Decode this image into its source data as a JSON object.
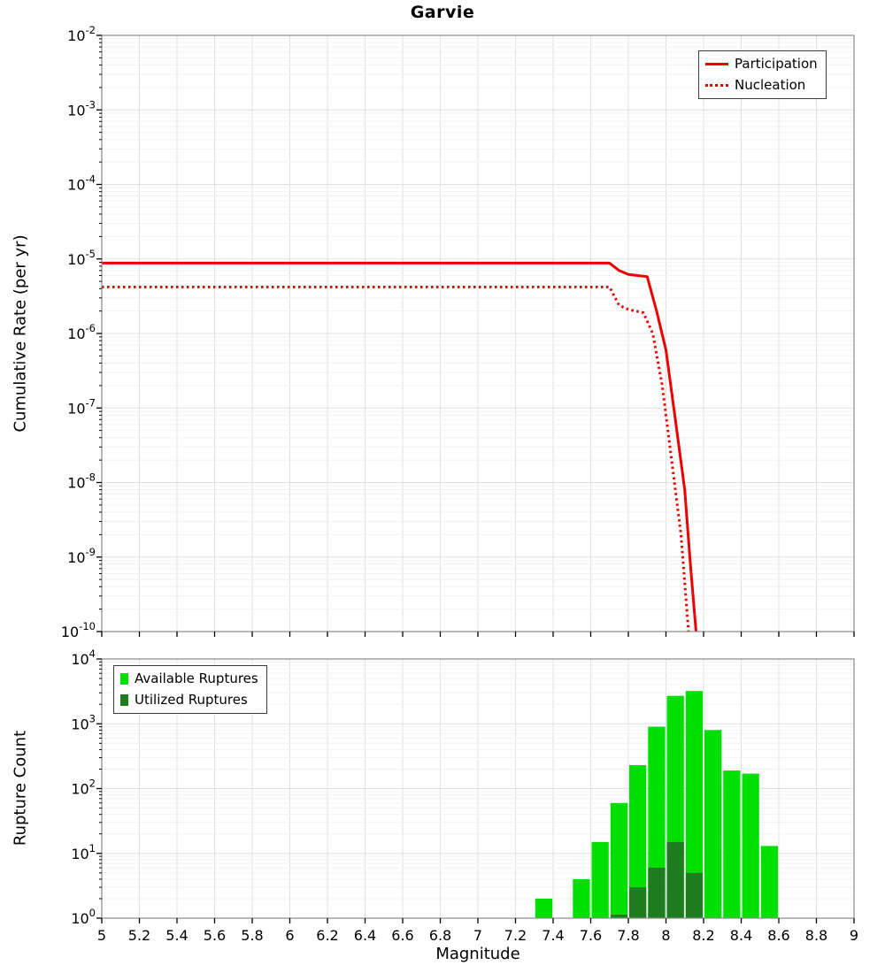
{
  "title": "Garvie",
  "axes": {
    "top_ylabel": "Cumulative Rate (per yr)",
    "bottom_ylabel": "Rupture Count",
    "xlabel": "Magnitude"
  },
  "legend_top": {
    "items": [
      {
        "label": "Participation",
        "style": "solid"
      },
      {
        "label": "Nucleation",
        "style": "dotted"
      }
    ]
  },
  "legend_bottom": {
    "items": [
      {
        "label": "Available Ruptures",
        "color": "#00e000"
      },
      {
        "label": "Utilized Ruptures",
        "color": "#1e7d1e"
      }
    ]
  },
  "colors": {
    "line": "#ee0000",
    "available": "#00e000",
    "utilized": "#1e7d1e",
    "grid": "#e0e0e0",
    "grid_minor": "#f2f2f2",
    "frame": "#8a8a8a"
  },
  "chart_data": [
    {
      "type": "line",
      "title": "Garvie",
      "xlabel": "Magnitude",
      "ylabel": "Cumulative Rate (per yr)",
      "xlim": [
        5,
        9
      ],
      "x_tick_step": 0.2,
      "show_x_labels": false,
      "ylog_exponents": [
        -2,
        -10
      ],
      "legend_position": "top-right",
      "series": [
        {
          "name": "Participation",
          "style": "solid",
          "color": "#ee0000",
          "points": [
            [
              5.0,
              8.8e-06
            ],
            [
              7.7,
              8.8e-06
            ],
            [
              7.75,
              7e-06
            ],
            [
              7.8,
              6.2e-06
            ],
            [
              7.9,
              5.8e-06
            ],
            [
              7.95,
              2e-06
            ],
            [
              8.0,
              6e-07
            ],
            [
              8.05,
              7e-08
            ],
            [
              8.1,
              8e-09
            ],
            [
              8.13,
              8e-10
            ],
            [
              8.16,
              1e-10
            ]
          ]
        },
        {
          "name": "Nucleation",
          "style": "dotted",
          "color": "#ee0000",
          "points": [
            [
              5.0,
              4.2e-06
            ],
            [
              7.7,
              4.2e-06
            ],
            [
              7.75,
              2.4e-06
            ],
            [
              7.8,
              2.1e-06
            ],
            [
              7.88,
              1.9e-06
            ],
            [
              7.93,
              1e-06
            ],
            [
              7.98,
              2e-07
            ],
            [
              8.03,
              2e-08
            ],
            [
              8.08,
              2e-09
            ],
            [
              8.12,
              1e-10
            ]
          ]
        }
      ]
    },
    {
      "type": "bar",
      "title": "",
      "xlabel": "Magnitude",
      "ylabel": "Rupture Count",
      "xlim": [
        5,
        9
      ],
      "x_tick_step": 0.2,
      "show_x_labels": true,
      "ylog_exponents": [
        4,
        0
      ],
      "bar_width_mag": 0.1,
      "legend_position": "top-left",
      "series": [
        {
          "name": "Available Ruptures",
          "color": "#00e000",
          "bars": [
            [
              7.35,
              2
            ],
            [
              7.55,
              4
            ],
            [
              7.65,
              15
            ],
            [
              7.75,
              60
            ],
            [
              7.85,
              230
            ],
            [
              7.95,
              900
            ],
            [
              8.05,
              2700
            ],
            [
              8.15,
              3200
            ],
            [
              8.25,
              800
            ],
            [
              8.35,
              190
            ],
            [
              8.45,
              170
            ],
            [
              8.55,
              13
            ]
          ]
        },
        {
          "name": "Utilized Ruptures",
          "color": "#1e7d1e",
          "bars": [
            [
              7.75,
              1
            ],
            [
              7.85,
              3
            ],
            [
              7.95,
              6
            ],
            [
              8.05,
              15
            ],
            [
              8.15,
              5
            ]
          ]
        }
      ]
    }
  ]
}
